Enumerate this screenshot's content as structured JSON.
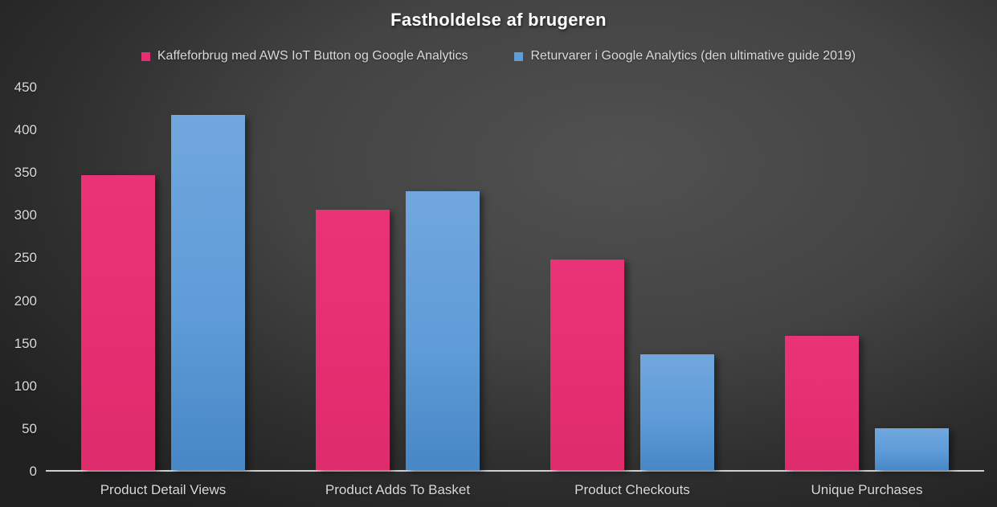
{
  "chart_data": {
    "type": "bar",
    "title": "Fastholdelse af brugeren",
    "categories": [
      "Product Detail Views",
      "Product Adds To Basket",
      "Product Checkouts",
      "Unique Purchases"
    ],
    "series": [
      {
        "name": "Kaffeforbrug med AWS IoT Button og Google Analytics",
        "color": "#e62e72",
        "values": [
          347,
          306,
          248,
          158
        ]
      },
      {
        "name": "Returvarer i Google Analytics (den ultimative guide 2019)",
        "color": "#5f9cd8",
        "values": [
          418,
          328,
          136,
          49
        ]
      }
    ],
    "xlabel": "",
    "ylabel": "",
    "ylim": [
      0,
      450
    ],
    "ytick_step": 50,
    "grid": false,
    "legend_position": "top",
    "background_color": "#3a3a3a",
    "text_color": "#d9d9d9",
    "title_color": "#ffffff",
    "axis_line_color": "#cfcfcf"
  }
}
